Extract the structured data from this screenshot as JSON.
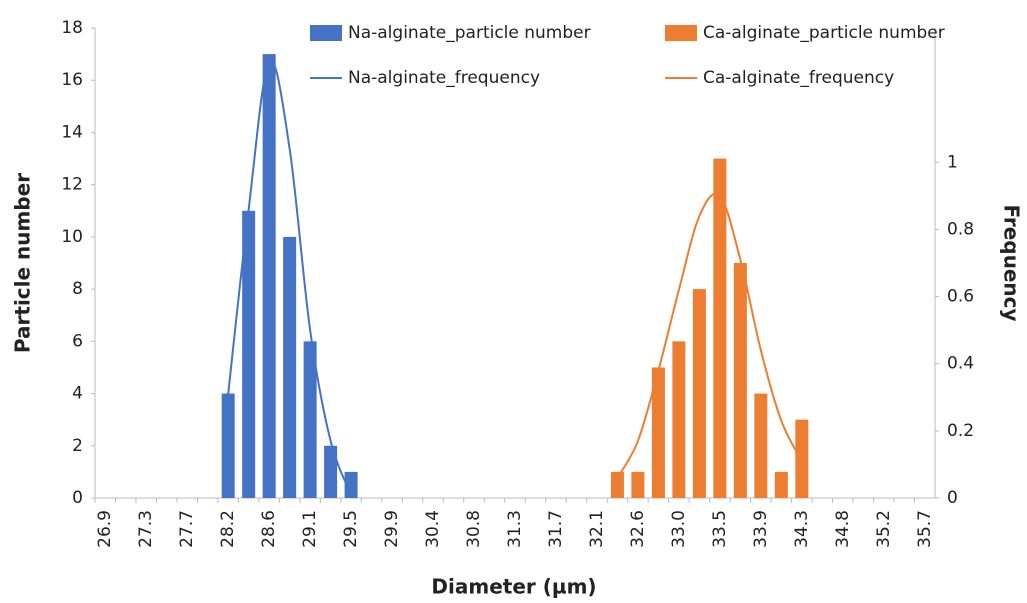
{
  "chart_data": {
    "type": "combo",
    "xlabel": "Diameter (µm)",
    "ylabel": "Particle number",
    "y2label": "Frequency",
    "categories": [
      "26.9",
      null,
      "27.3",
      null,
      "27.7",
      null,
      "28.2",
      null,
      "28.6",
      null,
      "29.1",
      null,
      "29.5",
      null,
      "29.9",
      null,
      "30.4",
      null,
      "30.8",
      null,
      "31.3",
      null,
      "31.7",
      null,
      "32.1",
      null,
      "32.6",
      null,
      "33.0",
      null,
      "33.5",
      null,
      "33.9",
      null,
      "34.3",
      null,
      "34.8",
      null,
      "35.2",
      null,
      "35.7"
    ],
    "ylim": [
      0,
      18
    ],
    "yticks": [
      0,
      2,
      4,
      6,
      8,
      10,
      12,
      14,
      16,
      18
    ],
    "y2lim": [
      0,
      1.4
    ],
    "y2ticks": [
      0,
      0.2,
      0.4,
      0.6,
      0.8,
      1
    ],
    "legend": "top",
    "series": [
      {
        "name": "Na-alginate_particle number",
        "type": "bar",
        "color": "#4472c4",
        "values": [
          null,
          null,
          null,
          null,
          null,
          null,
          4,
          11,
          17,
          10,
          6,
          2,
          1,
          null,
          null,
          null,
          null,
          null,
          null,
          null,
          null,
          null,
          null,
          null,
          null,
          null,
          null,
          null,
          null,
          null,
          null,
          null,
          null,
          null,
          null,
          null,
          null,
          null,
          null,
          null,
          null
        ]
      },
      {
        "name": "Ca-alginate_particle number",
        "type": "bar",
        "color": "#ed7d31",
        "values": [
          null,
          null,
          null,
          null,
          null,
          null,
          null,
          null,
          null,
          null,
          null,
          null,
          null,
          null,
          null,
          null,
          null,
          null,
          null,
          null,
          null,
          null,
          null,
          null,
          null,
          1,
          1,
          5,
          6,
          8,
          13,
          9,
          4,
          1,
          3,
          null,
          null,
          null,
          null,
          null,
          null
        ]
      },
      {
        "name": "Na-alginate_frequency",
        "type": "line",
        "axis": "y2",
        "color": "#4472c4",
        "values": [
          null,
          null,
          null,
          null,
          null,
          null,
          0.31,
          0.86,
          1.3,
          1.04,
          0.5,
          0.17,
          0.01,
          null,
          null,
          null,
          null,
          null,
          null,
          null,
          null,
          null,
          null,
          null,
          null,
          null,
          null,
          null,
          null,
          null,
          null,
          null,
          null,
          null,
          null,
          null,
          null,
          null,
          null,
          null,
          null
        ]
      },
      {
        "name": "Ca-alginate_frequency",
        "type": "line",
        "axis": "y2",
        "color": "#ed7d31",
        "values": [
          null,
          null,
          null,
          null,
          null,
          null,
          null,
          null,
          null,
          null,
          null,
          null,
          null,
          null,
          null,
          null,
          null,
          null,
          null,
          null,
          null,
          null,
          null,
          null,
          null,
          0.06,
          0.17,
          0.38,
          0.62,
          0.84,
          0.9,
          0.71,
          0.44,
          0.23,
          0.11,
          null,
          null,
          null,
          null,
          null,
          null
        ]
      }
    ]
  }
}
